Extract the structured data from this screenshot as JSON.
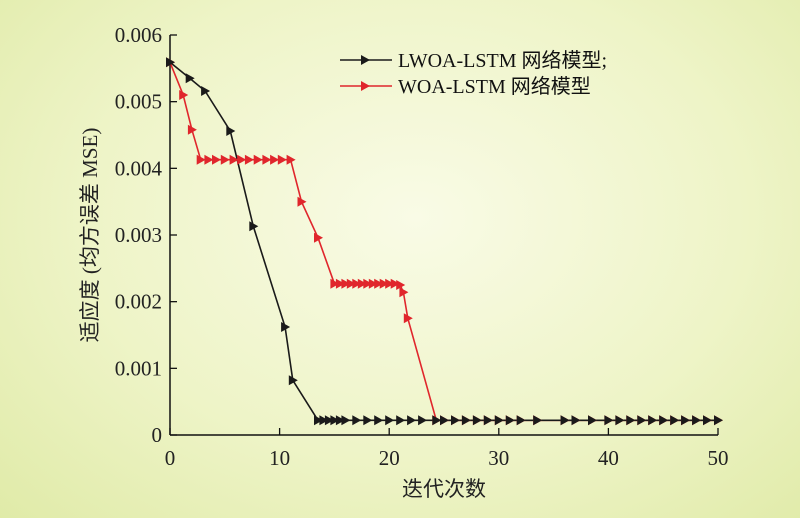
{
  "chart_data": {
    "type": "line",
    "xlabel": "迭代次数",
    "ylabel": "适应度 (均方误差 MSE)",
    "xlim": [
      0,
      50
    ],
    "ylim": [
      0,
      0.006
    ],
    "x_ticks": [
      "0",
      "10",
      "20",
      "30",
      "40",
      "50"
    ],
    "y_ticks": [
      "0",
      "0.001",
      "0.002",
      "0.003",
      "0.004",
      "0.005",
      "0.006"
    ],
    "grid": false,
    "legend_position": "top-right",
    "series": [
      {
        "name": "LWOA-LSTM 网络模型;",
        "color": "#1a1a1a",
        "marker": "triangle-right",
        "x": [
          0,
          1.8,
          3.2,
          5.5,
          7.6,
          10.5,
          11.2,
          13.5,
          14,
          14.5,
          15,
          15.5,
          16,
          17,
          18,
          19,
          20,
          21,
          22,
          23,
          24.3,
          25,
          26,
          27,
          28,
          29,
          30,
          31,
          32,
          33.5,
          36,
          37,
          38.5,
          40,
          41,
          42,
          43,
          44,
          45,
          46,
          47,
          48,
          49,
          50
        ],
        "y": [
          0.00559,
          0.00535,
          0.00516,
          0.00456,
          0.00313,
          0.00162,
          0.00082,
          0.00022,
          0.00022,
          0.00022,
          0.00022,
          0.00022,
          0.00022,
          0.00022,
          0.00022,
          0.00022,
          0.00022,
          0.00022,
          0.00022,
          0.00022,
          0.00022,
          0.00022,
          0.00022,
          0.00022,
          0.00022,
          0.00022,
          0.00022,
          0.00022,
          0.00022,
          0.00022,
          0.00022,
          0.00022,
          0.00022,
          0.00022,
          0.00022,
          0.00022,
          0.00022,
          0.00022,
          0.00022,
          0.00022,
          0.00022,
          0.00022,
          0.00022,
          0.00022
        ]
      },
      {
        "name": "WOA-LSTM 网络模型",
        "color": "#e0262c",
        "marker": "triangle-right",
        "x": [
          0,
          1.2,
          2,
          2.8,
          3.5,
          4.2,
          5,
          5.8,
          6.5,
          7.2,
          8,
          8.8,
          9.5,
          10.2,
          11,
          12,
          13.5,
          15,
          15.5,
          16,
          16.5,
          17,
          17.5,
          18,
          18.5,
          19,
          19.5,
          20,
          20.5,
          21,
          21.3,
          21.7,
          24.3,
          25,
          26,
          27,
          28,
          29,
          30,
          31,
          32,
          33.5,
          36,
          37,
          38.5,
          40,
          41,
          42,
          43,
          44,
          45,
          46,
          47,
          48,
          49,
          50
        ],
        "y": [
          0.00559,
          0.0051,
          0.00458,
          0.00413,
          0.00413,
          0.00413,
          0.00413,
          0.00413,
          0.00413,
          0.00413,
          0.00413,
          0.00413,
          0.00413,
          0.00413,
          0.00413,
          0.0035,
          0.00296,
          0.00227,
          0.00227,
          0.00227,
          0.00227,
          0.00227,
          0.00227,
          0.00227,
          0.00227,
          0.00227,
          0.00227,
          0.00227,
          0.00227,
          0.00225,
          0.00214,
          0.00175,
          0.00022,
          0.00022,
          0.00022,
          0.00022,
          0.00022,
          0.00022,
          0.00022,
          0.00022,
          0.00022,
          0.00022,
          0.00022,
          0.00022,
          0.00022,
          0.00022,
          0.00022,
          0.00022,
          0.00022,
          0.00022,
          0.00022,
          0.00022,
          0.00022,
          0.00022,
          0.00022,
          0.00022
        ]
      }
    ]
  }
}
